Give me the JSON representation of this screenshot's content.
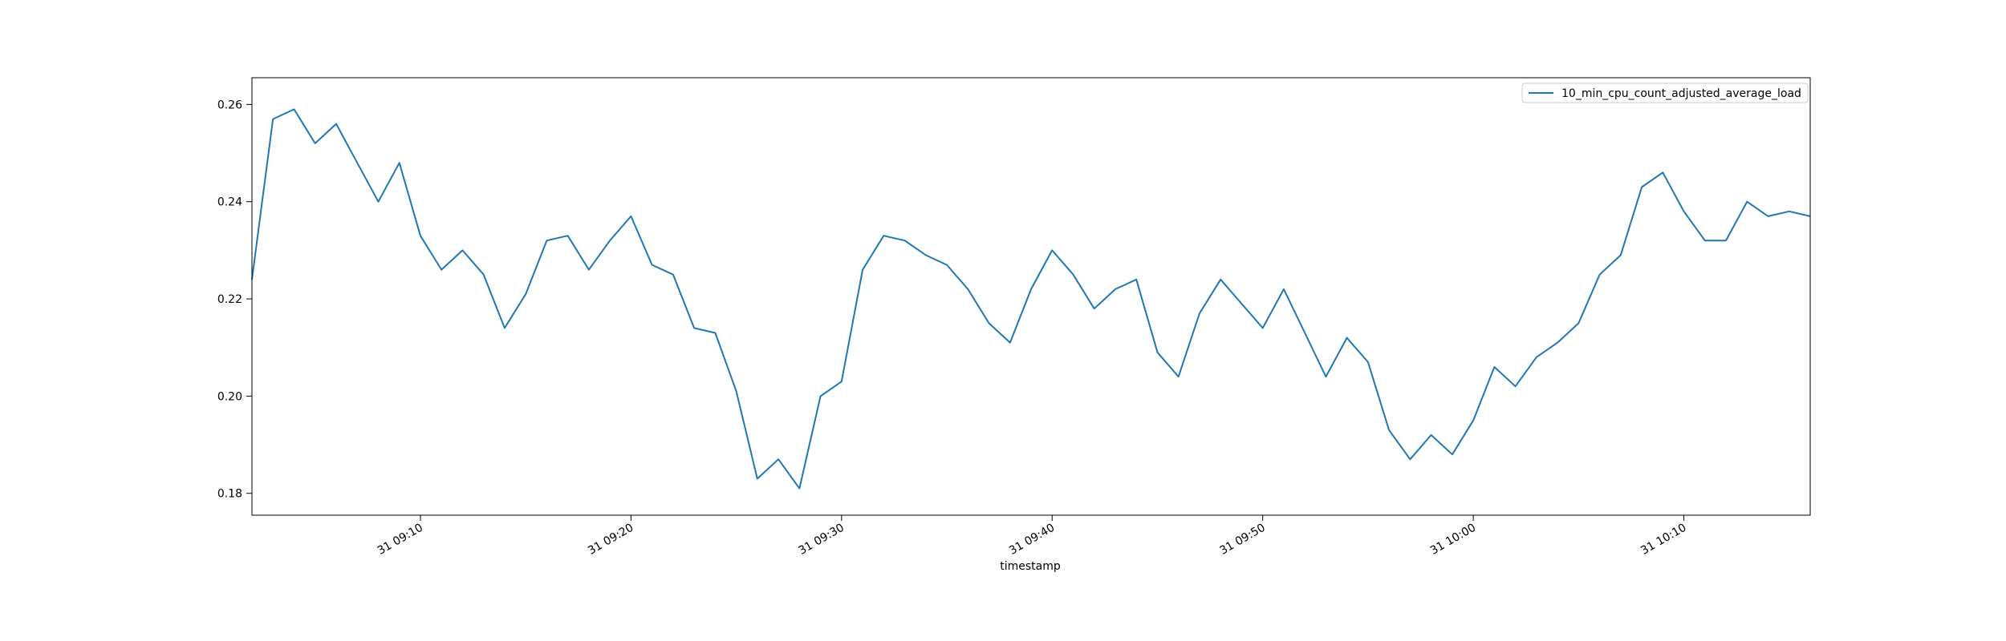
{
  "chart_data": {
    "type": "line",
    "title": "",
    "xlabel": "timestamp",
    "ylabel": "",
    "grid": false,
    "legend_position": "top-right",
    "x_range": [
      "31 09:02",
      "31 10:16"
    ],
    "ylim": [
      0.1755,
      0.2655
    ],
    "x_ticks": [
      "31 09:10",
      "31 09:20",
      "31 09:30",
      "31 09:40",
      "31 09:50",
      "31 10:00",
      "31 10:10"
    ],
    "y_ticks": [
      "0.18",
      "0.20",
      "0.22",
      "0.24",
      "0.26"
    ],
    "colors": {
      "series": "#1f77b4"
    },
    "series": [
      {
        "name": "10_min_cpu_count_adjusted_average_load",
        "x": [
          "31 09:02",
          "31 09:03",
          "31 09:04",
          "31 09:05",
          "31 09:06",
          "31 09:07",
          "31 09:08",
          "31 09:09",
          "31 09:10",
          "31 09:11",
          "31 09:12",
          "31 09:13",
          "31 09:14",
          "31 09:15",
          "31 09:16",
          "31 09:17",
          "31 09:18",
          "31 09:19",
          "31 09:20",
          "31 09:21",
          "31 09:22",
          "31 09:23",
          "31 09:24",
          "31 09:25",
          "31 09:26",
          "31 09:27",
          "31 09:28",
          "31 09:29",
          "31 09:30",
          "31 09:31",
          "31 09:32",
          "31 09:33",
          "31 09:34",
          "31 09:35",
          "31 09:36",
          "31 09:37",
          "31 09:38",
          "31 09:39",
          "31 09:40",
          "31 09:41",
          "31 09:42",
          "31 09:43",
          "31 09:44",
          "31 09:45",
          "31 09:46",
          "31 09:47",
          "31 09:48",
          "31 09:49",
          "31 09:50",
          "31 09:51",
          "31 09:52",
          "31 09:53",
          "31 09:54",
          "31 09:55",
          "31 09:56",
          "31 09:57",
          "31 09:58",
          "31 09:59",
          "31 10:00",
          "31 10:01",
          "31 10:02",
          "31 10:03",
          "31 10:04",
          "31 10:05",
          "31 10:06",
          "31 10:07",
          "31 10:08",
          "31 10:09",
          "31 10:10",
          "31 10:11",
          "31 10:12",
          "31 10:13",
          "31 10:14",
          "31 10:15",
          "31 10:16"
        ],
        "values": [
          0.224,
          0.257,
          0.259,
          0.252,
          0.256,
          0.248,
          0.24,
          0.248,
          0.233,
          0.226,
          0.23,
          0.225,
          0.214,
          0.221,
          0.232,
          0.233,
          0.226,
          0.232,
          0.237,
          0.227,
          0.225,
          0.214,
          0.213,
          0.201,
          0.183,
          0.187,
          0.181,
          0.2,
          0.203,
          0.226,
          0.233,
          0.232,
          0.229,
          0.227,
          0.222,
          0.215,
          0.211,
          0.222,
          0.23,
          0.225,
          0.218,
          0.222,
          0.224,
          0.209,
          0.204,
          0.217,
          0.224,
          0.219,
          0.214,
          0.222,
          0.213,
          0.204,
          0.212,
          0.207,
          0.193,
          0.187,
          0.192,
          0.188,
          0.195,
          0.206,
          0.202,
          0.208,
          0.211,
          0.215,
          0.225,
          0.229,
          0.243,
          0.246,
          0.238,
          0.232,
          0.232,
          0.24,
          0.237,
          0.238,
          0.237
        ]
      }
    ]
  }
}
